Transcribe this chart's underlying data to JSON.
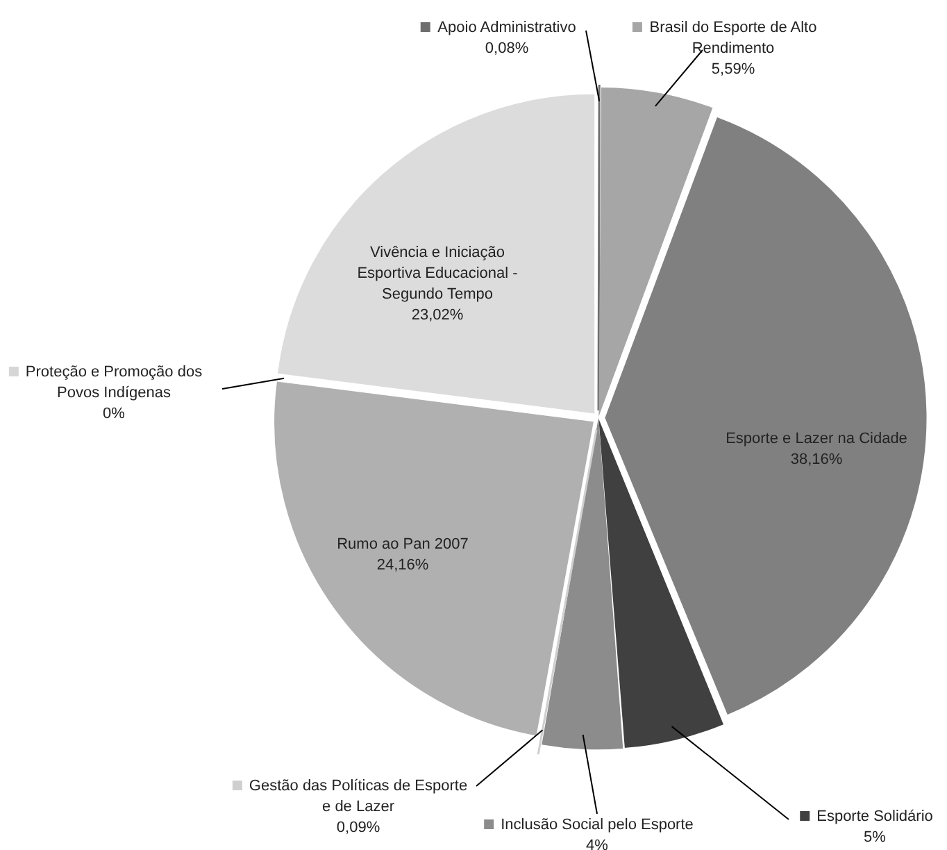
{
  "chart_data": {
    "type": "pie",
    "categories": [
      "Apoio Administrativo",
      "Brasil do Esporte de Alto Rendimento",
      "Esporte e Lazer na Cidade",
      "Esporte Solidário",
      "Inclusão Social pelo Esporte",
      "Gestão das Políticas de Esporte e de Lazer",
      "Rumo ao Pan 2007",
      "Proteção e Promoção dos Povos Indígenas",
      "Vivência e Iniciação Esportiva Educacional - Segundo Tempo"
    ],
    "values": [
      0.08,
      5.59,
      38.16,
      5,
      4,
      0.09,
      24.16,
      0,
      23.02
    ],
    "value_labels": [
      "0,08%",
      "5,59%",
      "38,16%",
      "5%",
      "4%",
      "0,09%",
      "24,16%",
      "0%",
      "23,02%"
    ],
    "colors": [
      "#6e6e6e",
      "#a6a6a6",
      "#808080",
      "#404040",
      "#8c8c8c",
      "#cfcfcf",
      "#b0b0b0",
      "#d6d6d6",
      "#dcdcdc"
    ],
    "legend": "bottom left"
  }
}
